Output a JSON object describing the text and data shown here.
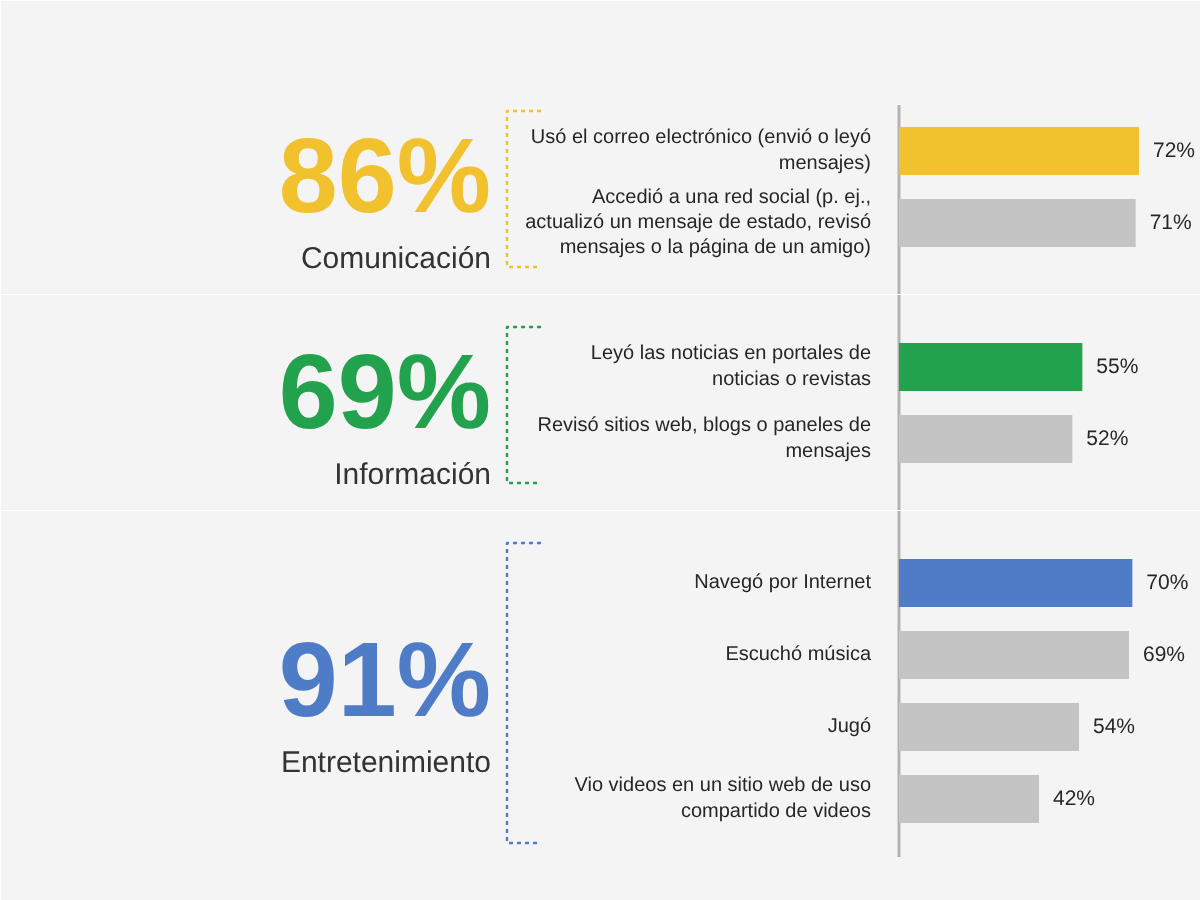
{
  "chart_data": [
    {
      "type": "bar",
      "orientation": "horizontal",
      "title": "86%",
      "subtitle": "Comunicación",
      "categories": [
        "Usó el correo electrónico (envió o leyó mensajes)",
        "Accedió a una red social (p. ej., actualizó un mensaje de estado, revisó mensajes o la página de un amigo)"
      ],
      "values": [
        72,
        71
      ],
      "colors": [
        "#f2c12e",
        "#c4c4c4"
      ],
      "value_labels": [
        "72%",
        "71%"
      ],
      "tick_labels": "y"
    },
    {
      "type": "bar",
      "orientation": "horizontal",
      "title": "69%",
      "subtitle": "Información",
      "categories": [
        "Leyó las noticias en portales de noticias o revistas",
        "Revisó sitios web, blogs o paneles de mensajes"
      ],
      "values": [
        55,
        52
      ],
      "colors": [
        "#22a24c",
        "#c4c4c4"
      ],
      "value_labels": [
        "55%",
        "52%"
      ],
      "tick_labels": "y"
    },
    {
      "type": "bar",
      "orientation": "horizontal",
      "title": "91%",
      "subtitle": "Entretenimiento",
      "categories": [
        "Navegó por Internet",
        "Escuchó música",
        "Jugó",
        "Vio videos en un sitio web de uso compartido de videos"
      ],
      "values": [
        70,
        69,
        54,
        42
      ],
      "colors": [
        "#4f7cc6",
        "#c4c4c4",
        "#c4c4c4",
        "#c4c4c4"
      ],
      "value_labels": [
        "70%",
        "69%",
        "54%",
        "42%"
      ],
      "tick_labels": "y"
    }
  ]
}
